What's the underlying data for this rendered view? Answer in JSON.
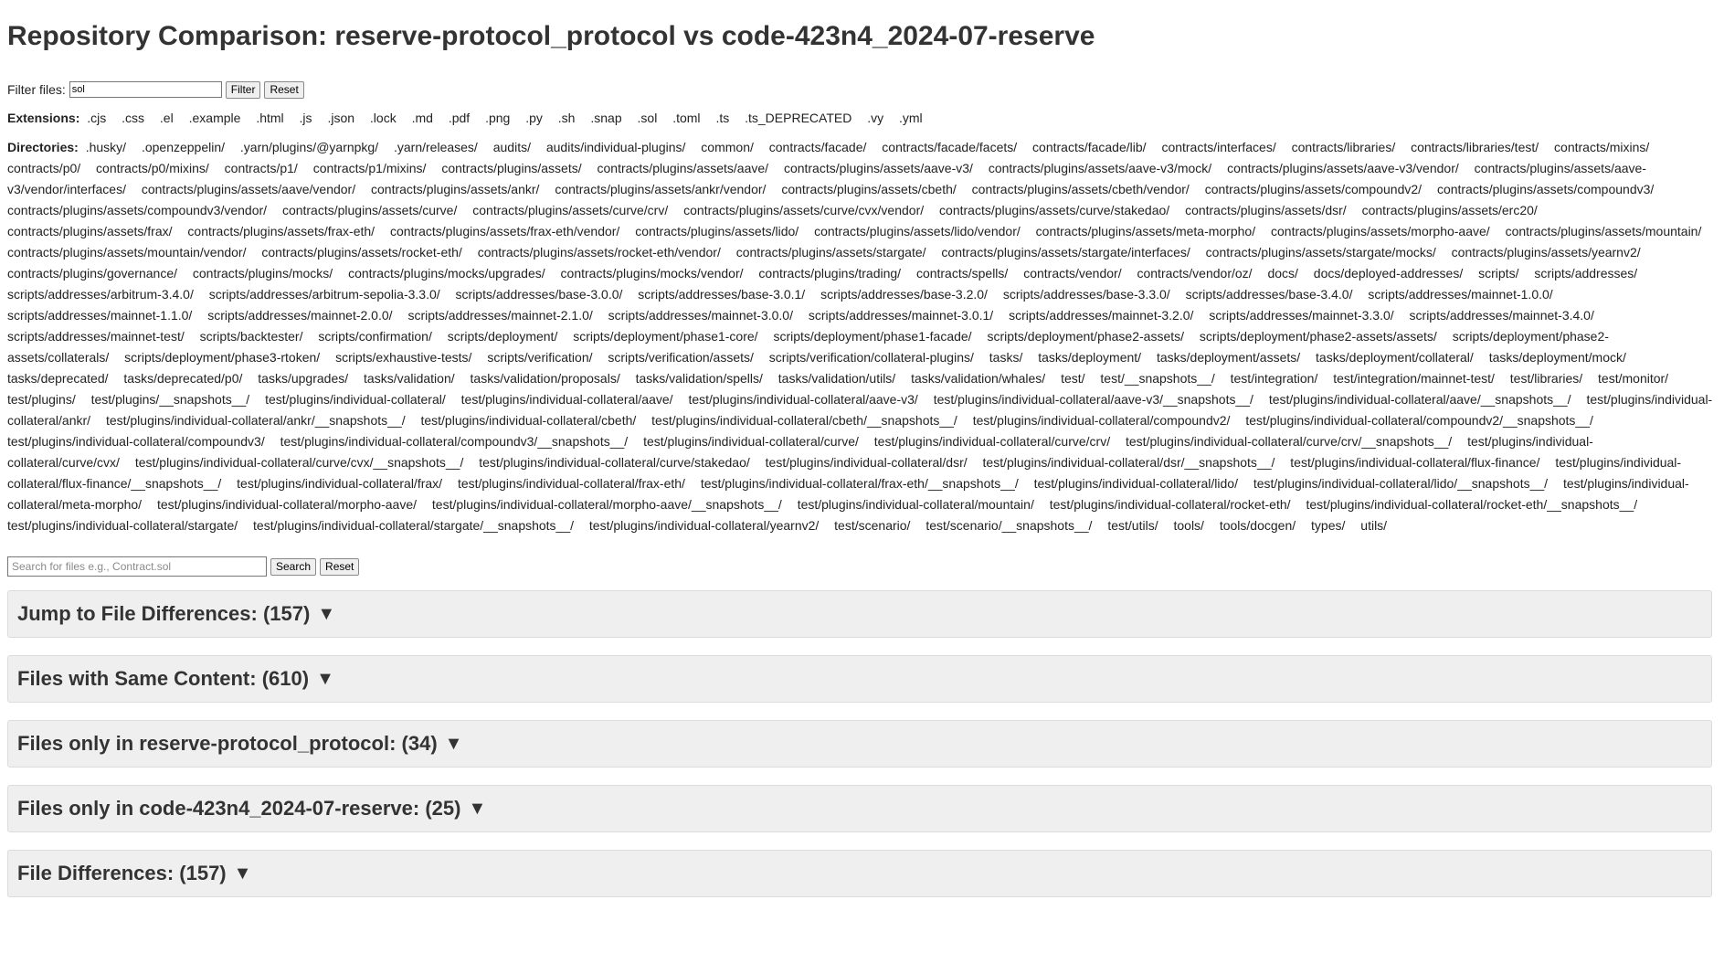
{
  "title": "Repository Comparison: reserve-protocol_protocol vs code-423n4_2024-07-reserve",
  "filter": {
    "label": "Filter files:",
    "value": "sol",
    "filter_button": "Filter",
    "reset_button": "Reset"
  },
  "extensions": {
    "label": "Extensions:",
    "items": [
      ".cjs",
      ".css",
      ".el",
      ".example",
      ".html",
      ".js",
      ".json",
      ".lock",
      ".md",
      ".pdf",
      ".png",
      ".py",
      ".sh",
      ".snap",
      ".sol",
      ".toml",
      ".ts",
      ".ts_DEPRECATED",
      ".vy",
      ".yml"
    ]
  },
  "directories": {
    "label": "Directories:",
    "items": [
      ".husky/",
      ".openzeppelin/",
      ".yarn/plugins/@yarnpkg/",
      ".yarn/releases/",
      "audits/",
      "audits/individual-plugins/",
      "common/",
      "contracts/facade/",
      "contracts/facade/facets/",
      "contracts/facade/lib/",
      "contracts/interfaces/",
      "contracts/libraries/",
      "contracts/libraries/test/",
      "contracts/mixins/",
      "contracts/p0/",
      "contracts/p0/mixins/",
      "contracts/p1/",
      "contracts/p1/mixins/",
      "contracts/plugins/assets/",
      "contracts/plugins/assets/aave/",
      "contracts/plugins/assets/aave-v3/",
      "contracts/plugins/assets/aave-v3/mock/",
      "contracts/plugins/assets/aave-v3/vendor/",
      "contracts/plugins/assets/aave-v3/vendor/interfaces/",
      "contracts/plugins/assets/aave/vendor/",
      "contracts/plugins/assets/ankr/",
      "contracts/plugins/assets/ankr/vendor/",
      "contracts/plugins/assets/cbeth/",
      "contracts/plugins/assets/cbeth/vendor/",
      "contracts/plugins/assets/compoundv2/",
      "contracts/plugins/assets/compoundv3/",
      "contracts/plugins/assets/compoundv3/vendor/",
      "contracts/plugins/assets/curve/",
      "contracts/plugins/assets/curve/crv/",
      "contracts/plugins/assets/curve/cvx/vendor/",
      "contracts/plugins/assets/curve/stakedao/",
      "contracts/plugins/assets/dsr/",
      "contracts/plugins/assets/erc20/",
      "contracts/plugins/assets/frax/",
      "contracts/plugins/assets/frax-eth/",
      "contracts/plugins/assets/frax-eth/vendor/",
      "contracts/plugins/assets/lido/",
      "contracts/plugins/assets/lido/vendor/",
      "contracts/plugins/assets/meta-morpho/",
      "contracts/plugins/assets/morpho-aave/",
      "contracts/plugins/assets/mountain/",
      "contracts/plugins/assets/mountain/vendor/",
      "contracts/plugins/assets/rocket-eth/",
      "contracts/plugins/assets/rocket-eth/vendor/",
      "contracts/plugins/assets/stargate/",
      "contracts/plugins/assets/stargate/interfaces/",
      "contracts/plugins/assets/stargate/mocks/",
      "contracts/plugins/assets/yearnv2/",
      "contracts/plugins/governance/",
      "contracts/plugins/mocks/",
      "contracts/plugins/mocks/upgrades/",
      "contracts/plugins/mocks/vendor/",
      "contracts/plugins/trading/",
      "contracts/spells/",
      "contracts/vendor/",
      "contracts/vendor/oz/",
      "docs/",
      "docs/deployed-addresses/",
      "scripts/",
      "scripts/addresses/",
      "scripts/addresses/arbitrum-3.4.0/",
      "scripts/addresses/arbitrum-sepolia-3.3.0/",
      "scripts/addresses/base-3.0.0/",
      "scripts/addresses/base-3.0.1/",
      "scripts/addresses/base-3.2.0/",
      "scripts/addresses/base-3.3.0/",
      "scripts/addresses/base-3.4.0/",
      "scripts/addresses/mainnet-1.0.0/",
      "scripts/addresses/mainnet-1.1.0/",
      "scripts/addresses/mainnet-2.0.0/",
      "scripts/addresses/mainnet-2.1.0/",
      "scripts/addresses/mainnet-3.0.0/",
      "scripts/addresses/mainnet-3.0.1/",
      "scripts/addresses/mainnet-3.2.0/",
      "scripts/addresses/mainnet-3.3.0/",
      "scripts/addresses/mainnet-3.4.0/",
      "scripts/addresses/mainnet-test/",
      "scripts/backtester/",
      "scripts/confirmation/",
      "scripts/deployment/",
      "scripts/deployment/phase1-core/",
      "scripts/deployment/phase1-facade/",
      "scripts/deployment/phase2-assets/",
      "scripts/deployment/phase2-assets/assets/",
      "scripts/deployment/phase2-assets/collaterals/",
      "scripts/deployment/phase3-rtoken/",
      "scripts/exhaustive-tests/",
      "scripts/verification/",
      "scripts/verification/assets/",
      "scripts/verification/collateral-plugins/",
      "tasks/",
      "tasks/deployment/",
      "tasks/deployment/assets/",
      "tasks/deployment/collateral/",
      "tasks/deployment/mock/",
      "tasks/deprecated/",
      "tasks/deprecated/p0/",
      "tasks/upgrades/",
      "tasks/validation/",
      "tasks/validation/proposals/",
      "tasks/validation/spells/",
      "tasks/validation/utils/",
      "tasks/validation/whales/",
      "test/",
      "test/__snapshots__/",
      "test/integration/",
      "test/integration/mainnet-test/",
      "test/libraries/",
      "test/monitor/",
      "test/plugins/",
      "test/plugins/__snapshots__/",
      "test/plugins/individual-collateral/",
      "test/plugins/individual-collateral/aave/",
      "test/plugins/individual-collateral/aave-v3/",
      "test/plugins/individual-collateral/aave-v3/__snapshots__/",
      "test/plugins/individual-collateral/aave/__snapshots__/",
      "test/plugins/individual-collateral/ankr/",
      "test/plugins/individual-collateral/ankr/__snapshots__/",
      "test/plugins/individual-collateral/cbeth/",
      "test/plugins/individual-collateral/cbeth/__snapshots__/",
      "test/plugins/individual-collateral/compoundv2/",
      "test/plugins/individual-collateral/compoundv2/__snapshots__/",
      "test/plugins/individual-collateral/compoundv3/",
      "test/plugins/individual-collateral/compoundv3/__snapshots__/",
      "test/plugins/individual-collateral/curve/",
      "test/plugins/individual-collateral/curve/crv/",
      "test/plugins/individual-collateral/curve/crv/__snapshots__/",
      "test/plugins/individual-collateral/curve/cvx/",
      "test/plugins/individual-collateral/curve/cvx/__snapshots__/",
      "test/plugins/individual-collateral/curve/stakedao/",
      "test/plugins/individual-collateral/dsr/",
      "test/plugins/individual-collateral/dsr/__snapshots__/",
      "test/plugins/individual-collateral/flux-finance/",
      "test/plugins/individual-collateral/flux-finance/__snapshots__/",
      "test/plugins/individual-collateral/frax/",
      "test/plugins/individual-collateral/frax-eth/",
      "test/plugins/individual-collateral/frax-eth/__snapshots__/",
      "test/plugins/individual-collateral/lido/",
      "test/plugins/individual-collateral/lido/__snapshots__/",
      "test/plugins/individual-collateral/meta-morpho/",
      "test/plugins/individual-collateral/morpho-aave/",
      "test/plugins/individual-collateral/morpho-aave/__snapshots__/",
      "test/plugins/individual-collateral/mountain/",
      "test/plugins/individual-collateral/rocket-eth/",
      "test/plugins/individual-collateral/rocket-eth/__snapshots__/",
      "test/plugins/individual-collateral/stargate/",
      "test/plugins/individual-collateral/stargate/__snapshots__/",
      "test/plugins/individual-collateral/yearnv2/",
      "test/scenario/",
      "test/scenario/__snapshots__/",
      "test/utils/",
      "tools/",
      "tools/docgen/",
      "types/",
      "utils/"
    ]
  },
  "search": {
    "placeholder": "Search for files e.g., Contract.sol",
    "value": "",
    "search_button": "Search",
    "reset_button": "Reset"
  },
  "sections": [
    {
      "label": "Jump to File Differences: (157)",
      "arrow": "▼"
    },
    {
      "label": "Files with Same Content: (610)",
      "arrow": "▼"
    },
    {
      "label": "Files only in reserve-protocol_protocol: (34)",
      "arrow": "▼"
    },
    {
      "label": "Files only in code-423n4_2024-07-reserve: (25)",
      "arrow": "▼"
    },
    {
      "label": "File Differences: (157)",
      "arrow": "▼"
    }
  ]
}
